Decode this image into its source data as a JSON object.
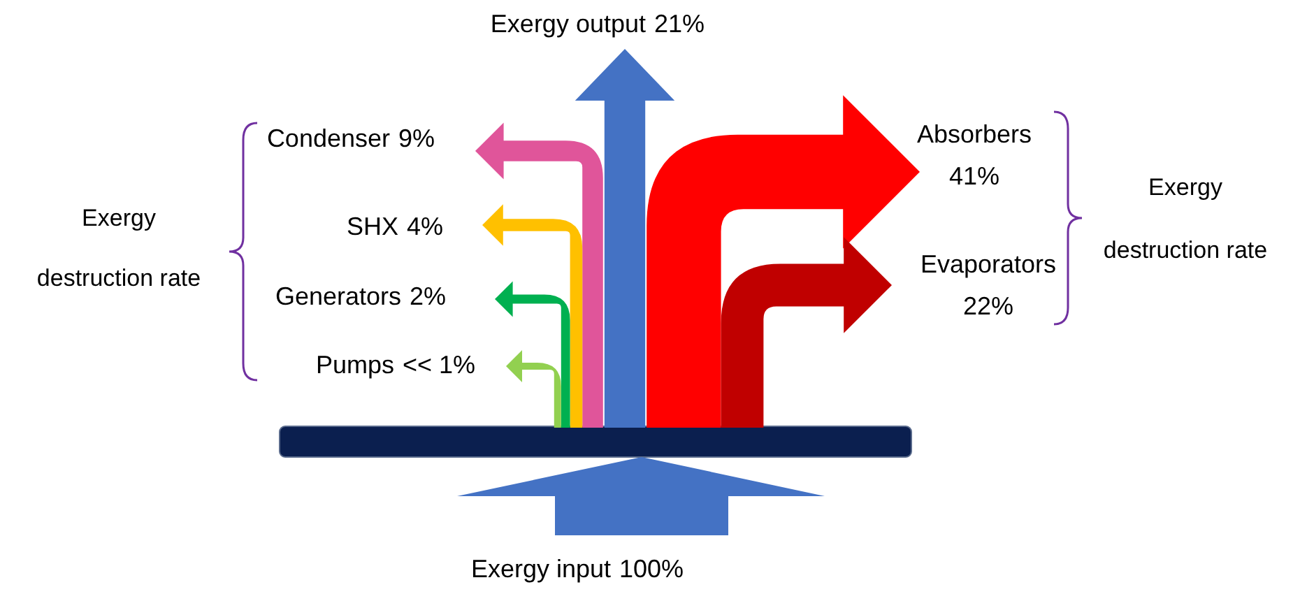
{
  "chart_data": {
    "type": "other",
    "categories": [
      "Exergy input",
      "Exergy output",
      "Absorbers",
      "Evaporators",
      "Condenser",
      "SHX",
      "Generators",
      "Pumps"
    ],
    "values": [
      100,
      21,
      41,
      22,
      9,
      4,
      2,
      null
    ],
    "value_labels": [
      "100%",
      "21%",
      "41%",
      "22%",
      "9%",
      "4%",
      "2%",
      "<< 1%"
    ],
    "colors": [
      "#4472c4",
      "#4472c4",
      "#ff0000",
      "#c00000",
      "#e0559a",
      "#ffc000",
      "#00b050",
      "#92d050"
    ],
    "annotations": [
      "Exergy destruction rate",
      "Exergy destruction rate"
    ]
  }
}
